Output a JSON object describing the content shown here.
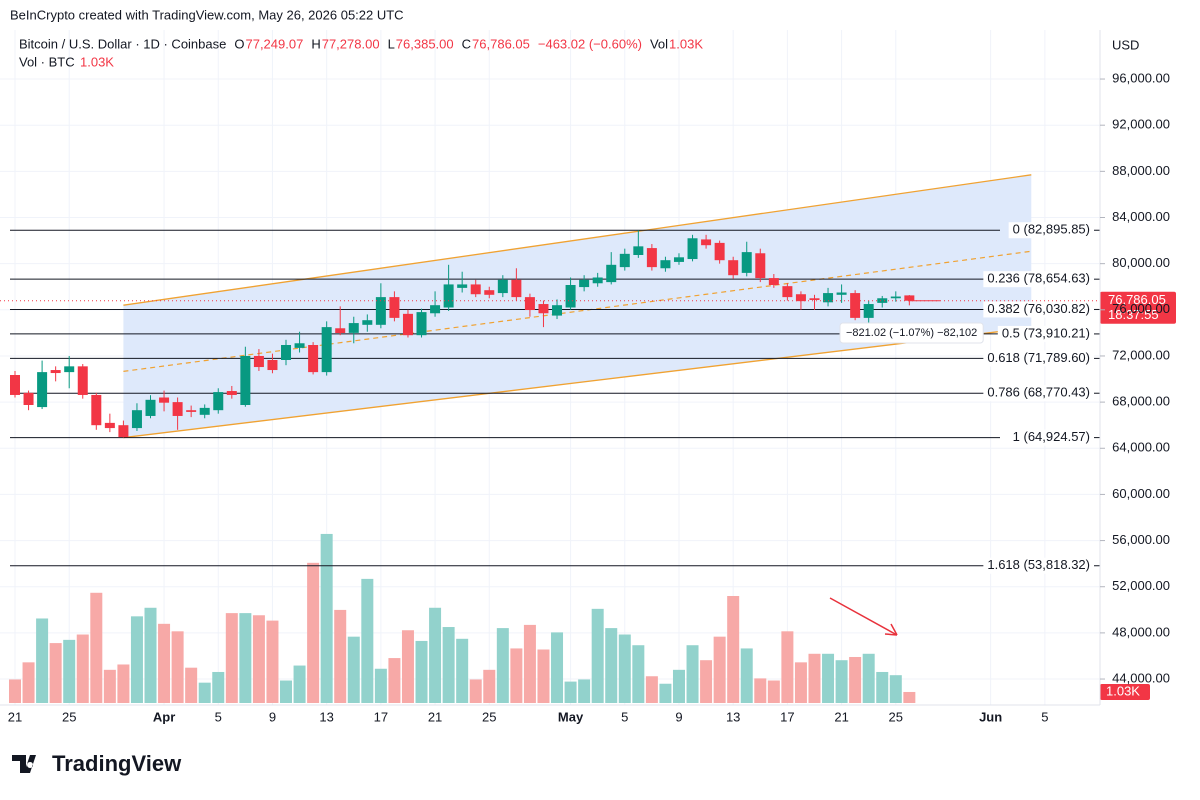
{
  "header": {
    "credit": "BeInCrypto created with TradingView.com, May 26, 2026 05:22 UTC"
  },
  "legend": {
    "symbol": "Bitcoin / U.S. Dollar · 1D · Coinbase",
    "items": [
      {
        "k": "O",
        "v": "77,249.07"
      },
      {
        "k": "H",
        "v": "77,278.00"
      },
      {
        "k": "L",
        "v": "76,385.00"
      },
      {
        "k": "C",
        "v": "76,786.05"
      },
      {
        "k": "",
        "v": "−463.02 (−0.60%)"
      },
      {
        "k": "Vol",
        "v": "1.03K"
      }
    ],
    "volume_name": "Vol · BTC",
    "volume_value": "1.03K"
  },
  "chart_data": {
    "type": "candlestick",
    "currency": "USD",
    "x": [
      "2026-03-21",
      "2026-03-22",
      "2026-03-23",
      "2026-03-24",
      "2026-03-25",
      "2026-03-26",
      "2026-03-27",
      "2026-03-28",
      "2026-03-29",
      "2026-03-30",
      "2026-03-31",
      "2026-04-01",
      "2026-04-02",
      "2026-04-03",
      "2026-04-04",
      "2026-04-05",
      "2026-04-06",
      "2026-04-07",
      "2026-04-08",
      "2026-04-09",
      "2026-04-10",
      "2026-04-11",
      "2026-04-12",
      "2026-04-13",
      "2026-04-14",
      "2026-04-15",
      "2026-04-16",
      "2026-04-17",
      "2026-04-18",
      "2026-04-19",
      "2026-04-20",
      "2026-04-21",
      "2026-04-22",
      "2026-04-23",
      "2026-04-24",
      "2026-04-25",
      "2026-04-26",
      "2026-04-27",
      "2026-04-28",
      "2026-04-29",
      "2026-04-30",
      "2026-05-01",
      "2026-05-02",
      "2026-05-03",
      "2026-05-04",
      "2026-05-05",
      "2026-05-06",
      "2026-05-07",
      "2026-05-08",
      "2026-05-09",
      "2026-05-10",
      "2026-05-11",
      "2026-05-12",
      "2026-05-13",
      "2026-05-14",
      "2026-05-15",
      "2026-05-16",
      "2026-05-17",
      "2026-05-18",
      "2026-05-19",
      "2026-05-20",
      "2026-05-21",
      "2026-05-22",
      "2026-05-23",
      "2026-05-24",
      "2026-05-25",
      "2026-05-26"
    ],
    "open": [
      70350,
      68800,
      67570,
      70780,
      70600,
      71100,
      68620,
      66200,
      66000,
      65750,
      66800,
      68400,
      68000,
      67300,
      66900,
      67300,
      68960,
      67750,
      72000,
      71650,
      71650,
      72700,
      72950,
      70600,
      74400,
      74000,
      74700,
      74700,
      77100,
      75650,
      73800,
      75700,
      76200,
      77900,
      78200,
      77700,
      77450,
      78600,
      77100,
      76500,
      75500,
      76200,
      77970,
      78300,
      78400,
      79700,
      80750,
      81350,
      79600,
      80150,
      80400,
      82100,
      81800,
      80300,
      79200,
      80900,
      78750,
      78050,
      77350,
      77000,
      76650,
      77300,
      77450,
      75300,
      76600,
      77000,
      77249.07
    ],
    "high": [
      70700,
      69000,
      71600,
      71100,
      72000,
      71300,
      68800,
      67000,
      66400,
      67900,
      68600,
      69000,
      68400,
      67700,
      67800,
      69200,
      69400,
      72800,
      72600,
      72200,
      73400,
      74100,
      73200,
      75000,
      76300,
      75400,
      75600,
      78300,
      77600,
      76000,
      76100,
      77600,
      79900,
      79300,
      78600,
      78000,
      79000,
      79600,
      77400,
      76800,
      76900,
      78800,
      79000,
      79200,
      81000,
      81300,
      82900,
      81700,
      80600,
      80900,
      82500,
      82500,
      82000,
      80600,
      81900,
      81300,
      79100,
      78300,
      77600,
      77300,
      77900,
      78200,
      77700,
      76800,
      77200,
      77600,
      77278
    ],
    "low": [
      68400,
      67300,
      67400,
      69800,
      69200,
      68300,
      65600,
      65400,
      64925,
      65500,
      66600,
      67200,
      65600,
      66700,
      66600,
      67000,
      68300,
      67600,
      70700,
      70500,
      71200,
      72300,
      70400,
      70300,
      73800,
      73100,
      74100,
      74400,
      75000,
      73600,
      73600,
      75400,
      75900,
      77500,
      77100,
      77000,
      77100,
      76800,
      75400,
      74500,
      75200,
      76000,
      77600,
      78000,
      78200,
      79400,
      80500,
      79400,
      79300,
      79900,
      80200,
      81300,
      80000,
      78700,
      78900,
      78400,
      77900,
      76800,
      76000,
      76000,
      76300,
      76600,
      75100,
      74500,
      76200,
      76700,
      76385
    ],
    "close": [
      68620,
      67750,
      70600,
      70520,
      71100,
      68620,
      66000,
      65750,
      64970,
      67300,
      68200,
      67950,
      66800,
      67150,
      67500,
      68870,
      68620,
      72000,
      71040,
      70780,
      72950,
      73100,
      70600,
      74500,
      73990,
      74850,
      75100,
      77100,
      75300,
      73800,
      75800,
      76400,
      78200,
      78200,
      77350,
      77300,
      78600,
      77100,
      75980,
      75700,
      76400,
      78150,
      78600,
      78800,
      79900,
      80850,
      81500,
      79700,
      80300,
      80550,
      82200,
      81600,
      80300,
      79000,
      81000,
      78750,
      78150,
      77100,
      76750,
      76850,
      77450,
      77500,
      75300,
      76500,
      77000,
      77150,
      76786.05
    ],
    "volume": [
      2200,
      3800,
      7900,
      5600,
      5900,
      6400,
      10300,
      3100,
      3600,
      8100,
      8900,
      7400,
      6700,
      3300,
      1900,
      2900,
      8400,
      8400,
      8200,
      7700,
      2100,
      3500,
      13100,
      15800,
      8700,
      6200,
      11600,
      3200,
      4200,
      6800,
      5800,
      8900,
      7100,
      6000,
      2200,
      3100,
      7000,
      5100,
      7300,
      5000,
      6600,
      2000,
      2200,
      8800,
      7000,
      6400,
      5400,
      2500,
      1800,
      3100,
      5400,
      4000,
      6200,
      10000,
      5100,
      2300,
      2100,
      6700,
      3800,
      4600,
      4600,
      4000,
      4300,
      4600,
      2900,
      2600,
      1030
    ],
    "volume_label": "1.03K",
    "up_color": "#089981",
    "down_color": "#f23645",
    "volume_up_color": "#92d2cc",
    "volume_down_color": "#f7a9a7",
    "xlim": [
      "2026-03-20",
      "2026-06-08"
    ],
    "xticks": [
      {
        "value": "2026-03-21",
        "label": "21"
      },
      {
        "value": "2026-03-25",
        "label": "25"
      },
      {
        "value": "2026-04-01",
        "label": "Apr"
      },
      {
        "value": "2026-04-05",
        "label": "5"
      },
      {
        "value": "2026-04-09",
        "label": "9"
      },
      {
        "value": "2026-04-13",
        "label": "13"
      },
      {
        "value": "2026-04-17",
        "label": "17"
      },
      {
        "value": "2026-04-21",
        "label": "21"
      },
      {
        "value": "2026-04-25",
        "label": "25"
      },
      {
        "value": "2026-05-01",
        "label": "May"
      },
      {
        "value": "2026-05-05",
        "label": "5"
      },
      {
        "value": "2026-05-09",
        "label": "9"
      },
      {
        "value": "2026-05-13",
        "label": "13"
      },
      {
        "value": "2026-05-17",
        "label": "17"
      },
      {
        "value": "2026-05-21",
        "label": "21"
      },
      {
        "value": "2026-05-25",
        "label": "25"
      },
      {
        "value": "2026-06-01",
        "label": "Jun"
      },
      {
        "value": "2026-06-05",
        "label": "5"
      }
    ],
    "ylim": [
      41750,
      100250
    ],
    "yticks": [
      {
        "value": 44000,
        "label": "44,000.00"
      },
      {
        "value": 48000,
        "label": "48,000.00"
      },
      {
        "value": 52000,
        "label": "52,000.00"
      },
      {
        "value": 56000,
        "label": "56,000.00"
      },
      {
        "value": 60000,
        "label": "60,000.00"
      },
      {
        "value": 64000,
        "label": "64,000.00"
      },
      {
        "value": 68000,
        "label": "68,000.00"
      },
      {
        "value": 72000,
        "label": "72,000.00"
      },
      {
        "value": 76000,
        "label": "76,000.00"
      },
      {
        "value": 80000,
        "label": "80,000.00"
      },
      {
        "value": 84000,
        "label": "84,000.00"
      },
      {
        "value": 88000,
        "label": "88,000.00"
      },
      {
        "value": 92000,
        "label": "92,000.00"
      },
      {
        "value": 96000,
        "label": "96,000.00"
      }
    ],
    "grid": true,
    "fib_levels": [
      {
        "label": "0 (82,895.85)",
        "value": 82895.85
      },
      {
        "label": "0.236 (78,654.63)",
        "value": 78654.63
      },
      {
        "label": "0.382 (76,030.82)",
        "value": 76030.82
      },
      {
        "label": "0.5 (73,910.21)",
        "value": 73910.21
      },
      {
        "label": "0.618 (71,789.60)",
        "value": 71789.6
      },
      {
        "label": "0.786 (68,770.43)",
        "value": 68770.43
      },
      {
        "label": "1 (64,924.57)",
        "value": 64924.57
      },
      {
        "label": "1.618 (53,818.32)",
        "value": 53818.32
      }
    ],
    "channel": {
      "color": "#f0a232",
      "fill": "#dce8fb",
      "upper": {
        "x": [
          "2026-03-29",
          "2026-06-04"
        ],
        "y": [
          76400,
          87700
        ]
      },
      "lower": {
        "x": [
          "2026-03-29",
          "2026-06-04"
        ],
        "y": [
          64925,
          74450
        ]
      }
    },
    "last_price": {
      "value": 76786.05,
      "label": "76,786.05",
      "countdown": "18:37:55"
    },
    "measure": "−821.02 (−1.07%) −82,102"
  },
  "footer": {
    "logo": "TradingView"
  }
}
